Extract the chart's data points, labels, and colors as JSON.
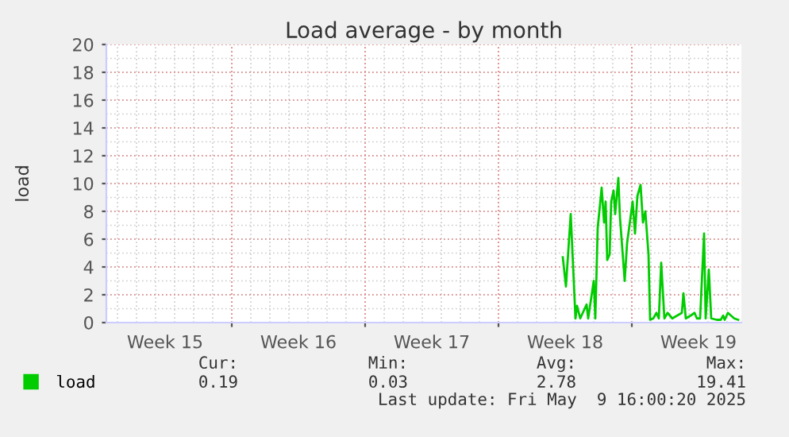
{
  "chart_data": {
    "type": "line",
    "title": "Load average - by month",
    "ylabel": "load",
    "x": [
      "2025-05-01T09:00",
      "2025-05-01T13:00",
      "2025-05-01T19:00",
      "2025-05-02T01:00",
      "2025-05-02T03:00",
      "2025-05-02T07:00",
      "2025-05-02T15:00",
      "2025-05-02T17:00",
      "2025-05-03T00:00",
      "2025-05-03T02:00",
      "2025-05-03T05:00",
      "2025-05-03T10:00",
      "2025-05-03T13:00",
      "2025-05-03T15:00",
      "2025-05-03T17:00",
      "2025-05-03T20:00",
      "2025-05-03T22:00",
      "2025-05-04T01:00",
      "2025-05-04T03:00",
      "2025-05-04T07:00",
      "2025-05-04T09:00",
      "2025-05-04T15:00",
      "2025-05-04T18:00",
      "2025-05-05T01:00",
      "2025-05-05T04:00",
      "2025-05-05T07:00",
      "2025-05-05T11:00",
      "2025-05-05T14:00",
      "2025-05-05T17:00",
      "2025-05-05T21:00",
      "2025-05-05T23:00",
      "2025-05-06T03:00",
      "2025-05-06T07:00",
      "2025-05-06T10:00",
      "2025-05-06T13:00",
      "2025-05-06T17:00",
      "2025-05-06T21:00",
      "2025-05-07T03:00",
      "2025-05-07T09:00",
      "2025-05-07T15:00",
      "2025-05-07T17:00",
      "2025-05-07T20:00",
      "2025-05-08T02:00",
      "2025-05-08T07:00",
      "2025-05-08T10:00",
      "2025-05-08T14:00",
      "2025-05-08T19:00",
      "2025-05-08T21:00",
      "2025-05-09T01:00",
      "2025-05-09T04:00",
      "2025-05-09T11:00",
      "2025-05-09T16:00",
      "2025-05-09T19:00",
      "2025-05-09T21:00",
      "2025-05-10T01:00",
      "2025-05-10T05:00",
      "2025-05-10T09:00",
      "2025-05-10T14:00"
    ],
    "series": [
      {
        "name": "load",
        "color": "#00cc00",
        "values": [
          4.7,
          2.6,
          7.8,
          0.3,
          1.2,
          0.3,
          1.3,
          0.3,
          3.0,
          0.3,
          6.8,
          9.7,
          7.2,
          8.7,
          4.5,
          4.9,
          8.7,
          9.5,
          7.8,
          10.4,
          7.6,
          3.0,
          5.7,
          8.7,
          6.4,
          9.1,
          9.9,
          7.2,
          8.0,
          4.9,
          0.2,
          0.3,
          0.7,
          0.3,
          4.3,
          0.3,
          0.7,
          0.3,
          0.5,
          0.7,
          2.1,
          0.3,
          0.5,
          0.7,
          0.3,
          0.3,
          6.4,
          0.3,
          3.8,
          0.3,
          0.2,
          0.2,
          0.5,
          0.2,
          0.7,
          0.5,
          0.3,
          0.2
        ]
      }
    ],
    "xlim": [
      "2025-04-07T10:00",
      "2025-05-10T18:00"
    ],
    "xticks": [
      {
        "value": "2025-04-10T12:00",
        "label": "Week 15"
      },
      {
        "value": "2025-04-14T00:00",
        "label": null
      },
      {
        "value": "2025-04-17T12:00",
        "label": "Week 16"
      },
      {
        "value": "2025-04-21T00:00",
        "label": null
      },
      {
        "value": "2025-04-24T12:00",
        "label": "Week 17"
      },
      {
        "value": "2025-04-28T00:00",
        "label": null
      },
      {
        "value": "2025-05-01T12:00",
        "label": "Week 18"
      },
      {
        "value": "2025-05-05T00:00",
        "label": null
      },
      {
        "value": "2025-05-08T12:00",
        "label": "Week 19"
      }
    ],
    "ylim": [
      0,
      20
    ],
    "yticks": [
      0,
      2,
      4,
      6,
      8,
      10,
      12,
      14,
      16,
      18,
      20
    ],
    "grid": true,
    "legend": "bottom left",
    "annotations": [
      "Cur:",
      "Min:",
      "Avg:",
      "Max:",
      "0.19",
      "0.03",
      "2.78",
      "19.41",
      "Last update: Fri May  9 16:00:20 2025"
    ]
  }
}
